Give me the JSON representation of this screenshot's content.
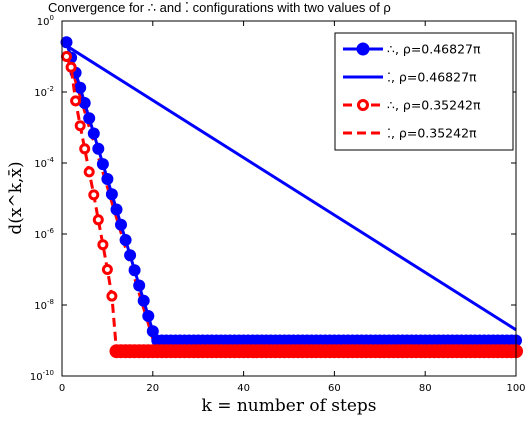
{
  "chart_data": {
    "type": "line",
    "title": "Convergence for ∴ and ⁚ configurations with two values of ρ",
    "xlabel": "k = number of steps",
    "ylabel": "d(x^k,x̄)",
    "x_ticks": [
      "0",
      "20",
      "40",
      "60",
      "80",
      "100"
    ],
    "y_ticks": [
      "10^-10",
      "10^-8",
      "10^-6",
      "10^-4",
      "10^-2",
      "10^0"
    ],
    "xlim": [
      0,
      100
    ],
    "ylim_log10": [
      -10,
      0
    ],
    "yscale": "log",
    "grid": false,
    "legend_position": "top-right",
    "series": [
      {
        "name": "∴, ρ=0.46827π",
        "color": "#0000ff",
        "line": "solid",
        "marker": "filled-circle",
        "x": [
          1,
          2,
          3,
          4,
          5,
          6,
          7,
          8,
          9,
          10,
          11,
          12,
          13,
          14,
          15,
          16,
          17,
          18,
          19,
          20,
          21,
          22,
          23,
          24,
          25,
          26,
          27,
          28,
          29,
          30,
          31,
          32,
          33,
          34,
          35,
          36,
          37,
          38,
          39,
          40,
          41,
          42,
          43,
          44,
          45,
          46,
          47,
          48,
          49,
          50,
          51,
          52,
          53,
          54,
          55,
          56,
          57,
          58,
          59,
          60,
          61,
          62,
          63,
          64,
          65,
          66,
          67,
          68,
          69,
          70,
          71,
          72,
          73,
          74,
          75,
          76,
          77,
          78,
          79,
          80,
          81,
          82,
          83,
          84,
          85,
          86,
          87,
          88,
          89,
          90,
          91,
          92,
          93,
          94,
          95,
          96,
          97,
          98,
          99,
          100
        ],
        "log10_y": [
          -0.6,
          -1.03,
          -1.46,
          -1.88,
          -2.31,
          -2.74,
          -3.17,
          -3.6,
          -4.03,
          -4.45,
          -4.88,
          -5.31,
          -5.74,
          -6.17,
          -6.6,
          -7.02,
          -7.45,
          -7.88,
          -8.31,
          -8.74,
          -9.0,
          -9.0,
          -9.0,
          -9.0,
          -9.0,
          -9.0,
          -9.0,
          -9.0,
          -9.0,
          -9.0,
          -9.0,
          -9.0,
          -9.0,
          -9.0,
          -9.0,
          -9.0,
          -9.0,
          -9.0,
          -9.0,
          -9.0,
          -9.0,
          -9.0,
          -9.0,
          -9.0,
          -9.0,
          -9.0,
          -9.0,
          -9.0,
          -9.0,
          -9.0,
          -9.0,
          -9.0,
          -9.0,
          -9.0,
          -9.0,
          -9.0,
          -9.0,
          -9.0,
          -9.0,
          -9.0,
          -9.0,
          -9.0,
          -9.0,
          -9.0,
          -9.0,
          -9.0,
          -9.0,
          -9.0,
          -9.0,
          -9.0,
          -9.0,
          -9.0,
          -9.0,
          -9.0,
          -9.0,
          -9.0,
          -9.0,
          -9.0,
          -9.0,
          -9.0,
          -9.0,
          -9.0,
          -9.0,
          -9.0,
          -9.0,
          -9.0,
          -9.0,
          -9.0,
          -9.0,
          -9.0,
          -9.0,
          -9.0,
          -9.0,
          -9.0,
          -9.0,
          -9.0,
          -9.0,
          -9.0,
          -9.0,
          -9.0
        ]
      },
      {
        "name": "⁚, ρ=0.46827π",
        "color": "#0000ff",
        "line": "solid",
        "marker": "none",
        "x": [
          1,
          100
        ],
        "log10_y": [
          -0.7,
          -8.7
        ]
      },
      {
        "name": "∴, ρ=0.35242π",
        "color": "#ff0000",
        "line": "dashed",
        "marker": "open-circle",
        "x": [
          1,
          2,
          3,
          4,
          5,
          6,
          7,
          8,
          9,
          10,
          11,
          12,
          13,
          14,
          15,
          16,
          17,
          18,
          19,
          20,
          21,
          22,
          23,
          24,
          25,
          26,
          27,
          28,
          29,
          30,
          31,
          32,
          33,
          34,
          35,
          36,
          37,
          38,
          39,
          40,
          41,
          42,
          43,
          44,
          45,
          46,
          47,
          48,
          49,
          50,
          51,
          52,
          53,
          54,
          55,
          56,
          57,
          58,
          59,
          60,
          61,
          62,
          63,
          64,
          65,
          66,
          67,
          68,
          69,
          70,
          71,
          72,
          73,
          74,
          75,
          76,
          77,
          78,
          79,
          80,
          81,
          82,
          83,
          84,
          85,
          86,
          87,
          88,
          89,
          90,
          91,
          92,
          93,
          94,
          95,
          96,
          97,
          98,
          99,
          100
        ],
        "log10_y": [
          -1.0,
          -1.3,
          -2.25,
          -2.95,
          -3.6,
          -4.25,
          -4.9,
          -5.6,
          -6.3,
          -7.0,
          -7.75,
          -9.3,
          -9.3,
          -9.3,
          -9.3,
          -9.3,
          -9.3,
          -9.3,
          -9.3,
          -9.3,
          -9.3,
          -9.3,
          -9.3,
          -9.3,
          -9.3,
          -9.3,
          -9.3,
          -9.3,
          -9.3,
          -9.3,
          -9.3,
          -9.3,
          -9.3,
          -9.3,
          -9.3,
          -9.3,
          -9.3,
          -9.3,
          -9.3,
          -9.3,
          -9.3,
          -9.3,
          -9.3,
          -9.3,
          -9.3,
          -9.3,
          -9.3,
          -9.3,
          -9.3,
          -9.3,
          -9.3,
          -9.3,
          -9.3,
          -9.3,
          -9.3,
          -9.3,
          -9.3,
          -9.3,
          -9.3,
          -9.3,
          -9.3,
          -9.3,
          -9.3,
          -9.3,
          -9.3,
          -9.3,
          -9.3,
          -9.3,
          -9.3,
          -9.3,
          -9.3,
          -9.3,
          -9.3,
          -9.3,
          -9.3,
          -9.3,
          -9.3,
          -9.3,
          -9.3,
          -9.3,
          -9.3,
          -9.3,
          -9.3,
          -9.3,
          -9.3,
          -9.3,
          -9.3,
          -9.3,
          -9.3,
          -9.3,
          -9.3,
          -9.3,
          -9.3,
          -9.3,
          -9.3,
          -9.3,
          -9.3,
          -9.3,
          -9.3,
          -9.3
        ]
      },
      {
        "name": "⁚, ρ=0.35242π",
        "color": "#ff0000",
        "line": "dashed",
        "marker": "none",
        "x": [
          1,
          2,
          3,
          4,
          5,
          6,
          7,
          8,
          9,
          10,
          11,
          12,
          13,
          14,
          15,
          16,
          17,
          18,
          19,
          20,
          21,
          22,
          23,
          24,
          25
        ],
        "log10_y": [
          -0.85,
          -1.25,
          -1.7,
          -2.12,
          -2.55,
          -2.98,
          -3.4,
          -3.83,
          -4.26,
          -4.68,
          -5.11,
          -5.54,
          -5.96,
          -6.39,
          -6.82,
          -7.24,
          -7.67,
          -8.1,
          -8.52,
          -8.95,
          -9.3,
          -9.3,
          -9.3,
          -9.3,
          -9.3
        ]
      }
    ]
  }
}
